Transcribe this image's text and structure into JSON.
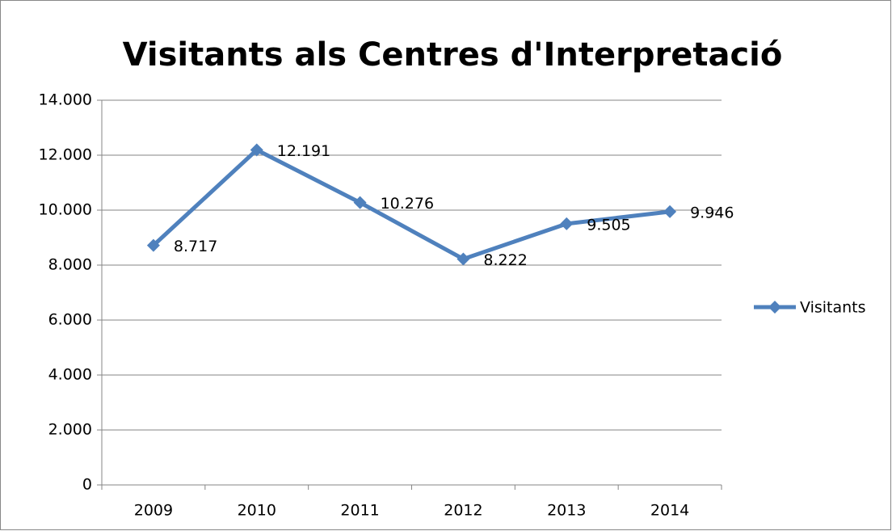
{
  "chart_data": {
    "type": "line",
    "title": "Visitants als Centres d'Interpretació",
    "categories": [
      "2009",
      "2010",
      "2011",
      "2012",
      "2013",
      "2014"
    ],
    "series": [
      {
        "name": "Visitants",
        "color": "#4f81bd",
        "values": [
          8717,
          12191,
          10276,
          8222,
          9505,
          9946
        ],
        "value_labels": [
          "8.717",
          "12.191",
          "10.276",
          "8.222",
          "9.505",
          "9.946"
        ]
      }
    ],
    "ylim": [
      0,
      14000
    ],
    "yticks": [
      0,
      {
        "value": 2000,
        "label": "2.000"
      },
      {
        "value": 4000,
        "label": "4.000"
      },
      {
        "value": 6000,
        "label": "6.000"
      },
      {
        "value": 8000,
        "label": "8.000"
      },
      {
        "value": 10000,
        "label": "10.000"
      },
      {
        "value": 12000,
        "label": "12.000"
      },
      {
        "value": 14000,
        "label": "14.000"
      }
    ],
    "grid": true,
    "legend": "right"
  }
}
